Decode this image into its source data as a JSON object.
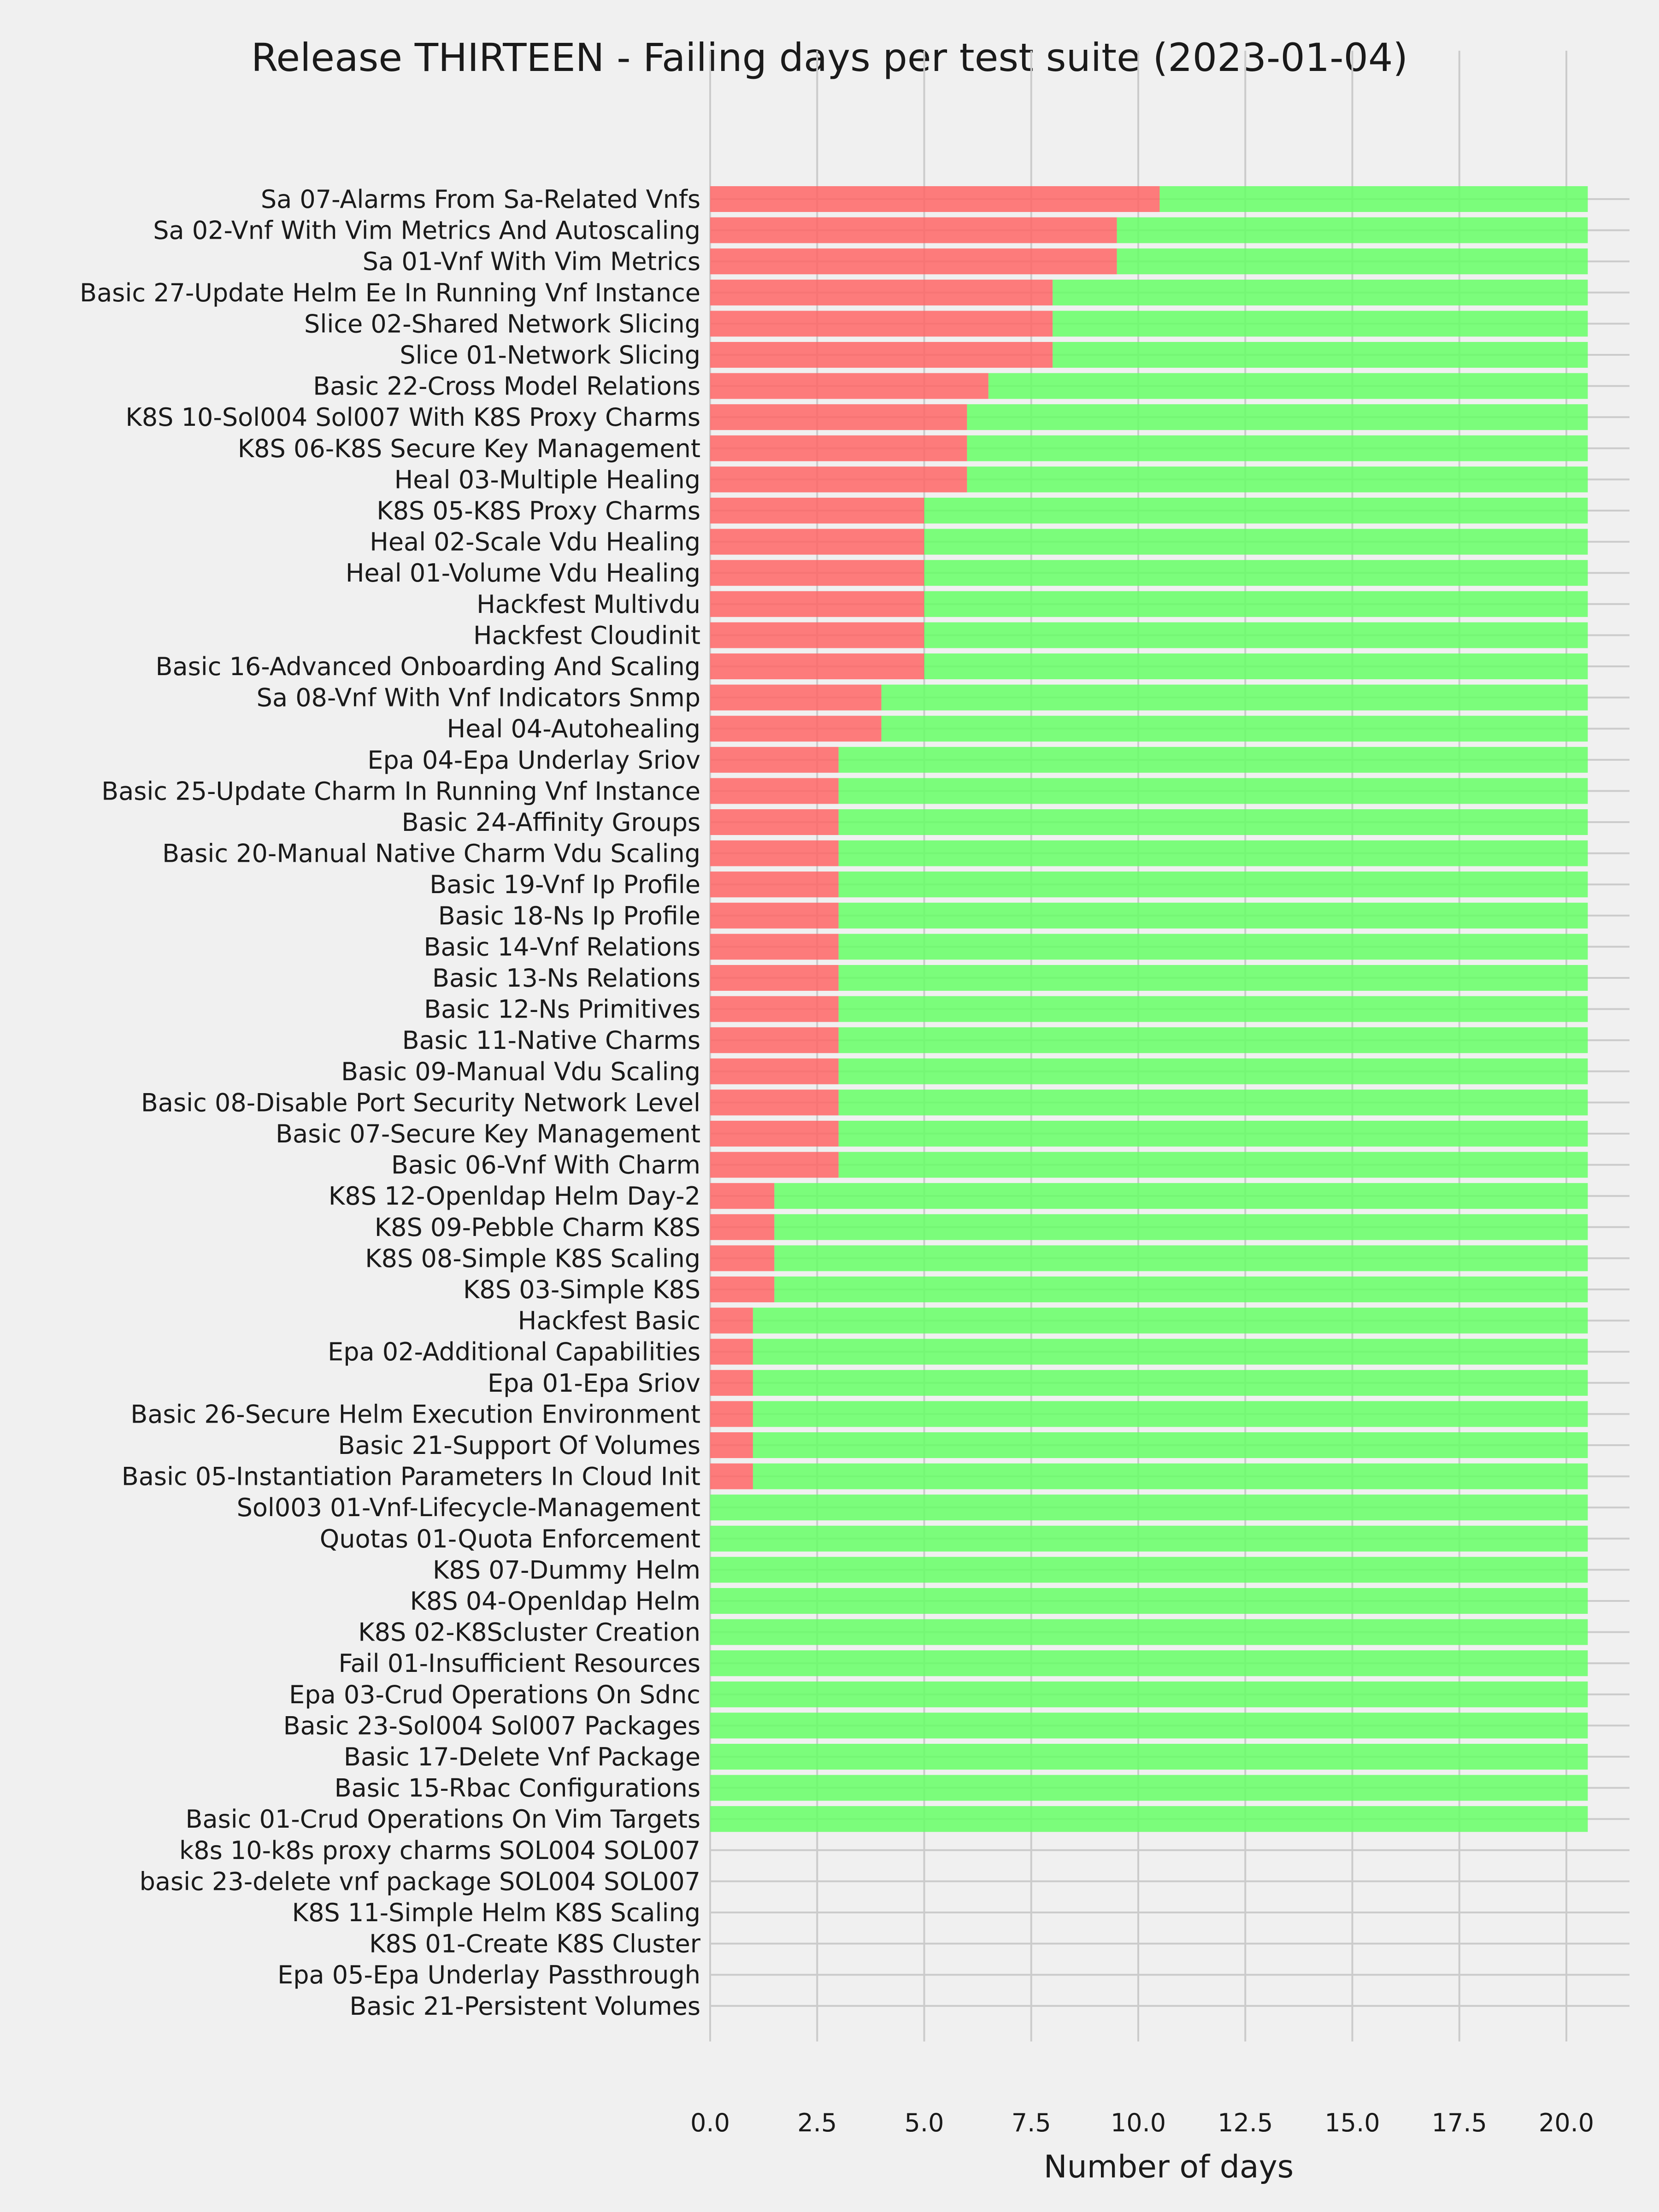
{
  "chart_data": {
    "type": "bar",
    "orientation": "horizontal",
    "stacked": true,
    "title": "Release THIRTEEN - Failing days per test suite (2023-01-04)",
    "xlabel": "Number of days",
    "ylabel": "",
    "xlim": [
      0,
      21.5
    ],
    "xticks": [
      "0.0",
      "2.5",
      "5.0",
      "7.5",
      "10.0",
      "12.5",
      "15.0",
      "17.5",
      "20.0"
    ],
    "grid": true,
    "categories": [
      "Sa 07-Alarms From Sa-Related Vnfs",
      "Sa 02-Vnf With Vim Metrics And Autoscaling",
      "Sa 01-Vnf With Vim Metrics",
      "Basic 27-Update Helm Ee In Running Vnf Instance",
      "Slice 02-Shared Network Slicing",
      "Slice 01-Network Slicing",
      "Basic 22-Cross Model Relations",
      "K8S 10-Sol004 Sol007 With K8S Proxy Charms",
      "K8S 06-K8S Secure Key Management",
      "Heal 03-Multiple Healing",
      "K8S 05-K8S Proxy Charms",
      "Heal 02-Scale Vdu Healing",
      "Heal 01-Volume Vdu Healing",
      "Hackfest Multivdu",
      "Hackfest Cloudinit",
      "Basic 16-Advanced Onboarding And Scaling",
      "Sa 08-Vnf With Vnf Indicators Snmp",
      "Heal 04-Autohealing",
      "Epa 04-Epa Underlay Sriov",
      "Basic 25-Update Charm In Running Vnf Instance",
      "Basic 24-Affinity Groups",
      "Basic 20-Manual Native Charm Vdu Scaling",
      "Basic 19-Vnf Ip Profile",
      "Basic 18-Ns Ip Profile",
      "Basic 14-Vnf Relations",
      "Basic 13-Ns Relations",
      "Basic 12-Ns Primitives",
      "Basic 11-Native Charms",
      "Basic 09-Manual Vdu Scaling",
      "Basic 08-Disable Port Security Network Level",
      "Basic 07-Secure Key Management",
      "Basic 06-Vnf With Charm",
      "K8S 12-Openldap Helm Day-2",
      "K8S 09-Pebble Charm K8S",
      "K8S 08-Simple K8S Scaling",
      "K8S 03-Simple K8S",
      "Hackfest Basic",
      "Epa 02-Additional Capabilities",
      "Epa 01-Epa Sriov",
      "Basic 26-Secure Helm Execution Environment",
      "Basic 21-Support Of Volumes",
      "Basic 05-Instantiation Parameters In Cloud Init",
      "Sol003 01-Vnf-Lifecycle-Management",
      "Quotas 01-Quota Enforcement",
      "K8S 07-Dummy Helm",
      "K8S 04-Openldap Helm",
      "K8S 02-K8Scluster Creation",
      "Fail 01-Insufficient Resources",
      "Epa 03-Crud Operations On Sdnc",
      "Basic 23-Sol004 Sol007 Packages",
      "Basic 17-Delete Vnf Package",
      "Basic 15-Rbac Configurations",
      "Basic 01-Crud Operations On Vim Targets",
      "k8s 10-k8s proxy charms SOL004 SOL007",
      "basic 23-delete vnf package SOL004 SOL007",
      "K8S 11-Simple Helm K8S Scaling",
      "K8S 01-Create K8S Cluster",
      "Epa 05-Epa Underlay Passthrough",
      "Basic 21-Persistent Volumes"
    ],
    "series": [
      {
        "color": "#ff6666",
        "values": [
          10.5,
          9.5,
          9.5,
          8,
          8,
          8,
          6.5,
          6,
          6,
          6,
          5,
          5,
          5,
          5,
          5,
          5,
          4,
          4,
          3,
          3,
          3,
          3,
          3,
          3,
          3,
          3,
          3,
          3,
          3,
          3,
          3,
          3,
          1.5,
          1.5,
          1.5,
          1.5,
          1,
          1,
          1,
          1,
          1,
          1,
          0,
          0,
          0,
          0,
          0,
          0,
          0,
          0,
          0,
          0,
          0,
          0,
          0,
          0,
          0,
          0,
          0
        ]
      },
      {
        "color": "#66ff66",
        "values": [
          10,
          11,
          11,
          12.5,
          12.5,
          12.5,
          14,
          14.5,
          14.5,
          14.5,
          15.5,
          15.5,
          15.5,
          15.5,
          15.5,
          15.5,
          16.5,
          16.5,
          17.5,
          17.5,
          17.5,
          17.5,
          17.5,
          17.5,
          17.5,
          17.5,
          17.5,
          17.5,
          17.5,
          17.5,
          17.5,
          17.5,
          19,
          19,
          19,
          19,
          19.5,
          19.5,
          19.5,
          19.5,
          19.5,
          19.5,
          20.5,
          20.5,
          20.5,
          20.5,
          20.5,
          20.5,
          20.5,
          20.5,
          20.5,
          20.5,
          20.5,
          0,
          0,
          0,
          0,
          0,
          0
        ]
      }
    ]
  }
}
